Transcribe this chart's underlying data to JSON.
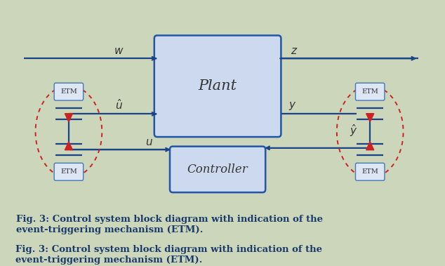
{
  "bg_color": "#ccd6ba",
  "box_facecolor": "#ccd9ee",
  "box_edgecolor": "#2255aa",
  "line_color": "#1a4488",
  "etm_facecolor": "#dde6f4",
  "etm_edgecolor": "#4477bb",
  "ellipse_color": "#cc2222",
  "arrow_color": "#cc2222",
  "text_color": "#333333",
  "caption_color": "#1a3a6a",
  "caption": "Fig. 3: Control system block diagram with indication of the\nevent-triggering mechanism (ETM)."
}
